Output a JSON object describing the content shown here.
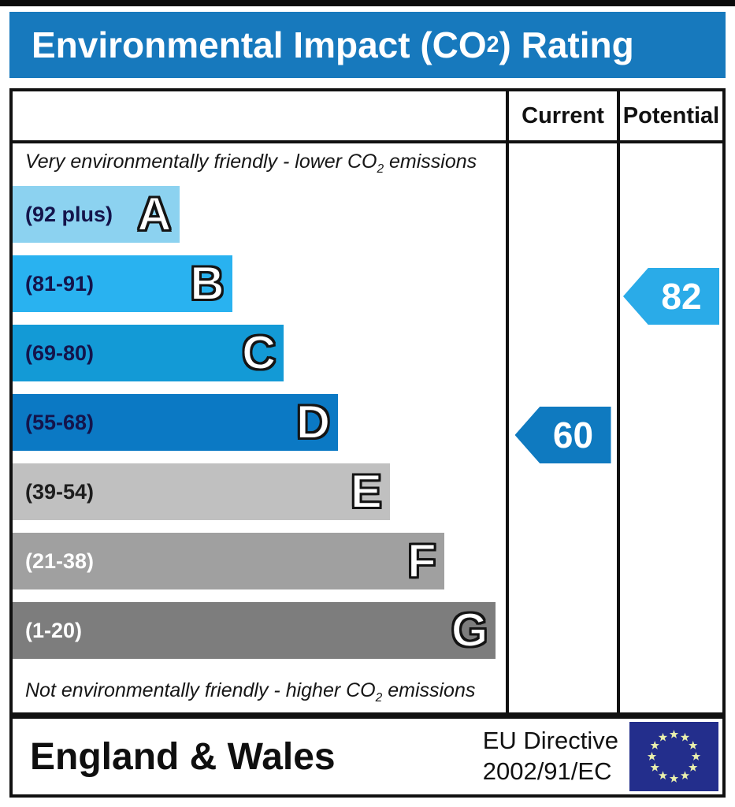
{
  "title": {
    "pre": "Environmental Impact (CO",
    "sub": "2",
    "post": ") Rating"
  },
  "table": {
    "columns": {
      "current": "Current",
      "potential": "Potential"
    },
    "top_note": {
      "pre": "Very environmentally friendly - lower CO",
      "sub": "2",
      "post": " emissions"
    },
    "bottom_note": {
      "pre": "Not environmentally friendly - higher CO",
      "sub": "2",
      "post": " emissions"
    }
  },
  "chart_data": {
    "type": "bar",
    "title": "Environmental Impact (CO2) Rating",
    "orientation": "horizontal",
    "bands": [
      {
        "letter": "A",
        "range": "(92 plus)",
        "width_pct": 33.8,
        "color": "#8cd2f0",
        "label_color": "#14144b"
      },
      {
        "letter": "B",
        "range": "(81-91)",
        "width_pct": 44.5,
        "color": "#29b2f0",
        "label_color": "#14144b"
      },
      {
        "letter": "C",
        "range": "(69-80)",
        "width_pct": 55.0,
        "color": "#139ad6",
        "label_color": "#14144b"
      },
      {
        "letter": "D",
        "range": "(55-68)",
        "width_pct": 66.0,
        "color": "#0b79c4",
        "label_color": "#14144b"
      },
      {
        "letter": "E",
        "range": "(39-54)",
        "width_pct": 76.5,
        "color": "#c0c0c0",
        "label_color": "#1d1d1d"
      },
      {
        "letter": "F",
        "range": "(21-38)",
        "width_pct": 87.5,
        "color": "#a0a0a0",
        "label_color": "#ffffff"
      },
      {
        "letter": "G",
        "range": "(1-20)",
        "width_pct": 98.0,
        "color": "#7d7d7d",
        "label_color": "#ffffff"
      }
    ],
    "current": {
      "label": "60",
      "value": 60,
      "band": "D",
      "row_index": 3,
      "color": "#0f7ac0"
    },
    "potential": {
      "label": "82",
      "value": 82,
      "band": "B",
      "row_index": 1,
      "color": "#2aabe8"
    }
  },
  "footer": {
    "region": "England & Wales",
    "directive_line1": "EU Directive",
    "directive_line2": "2002/91/EC",
    "flag_icon": "eu-flag-icon"
  },
  "colors": {
    "title-bar": "#1779bd",
    "border": "#111111",
    "flag-bg": "#232e8c",
    "flag-star": "#e9efad"
  }
}
